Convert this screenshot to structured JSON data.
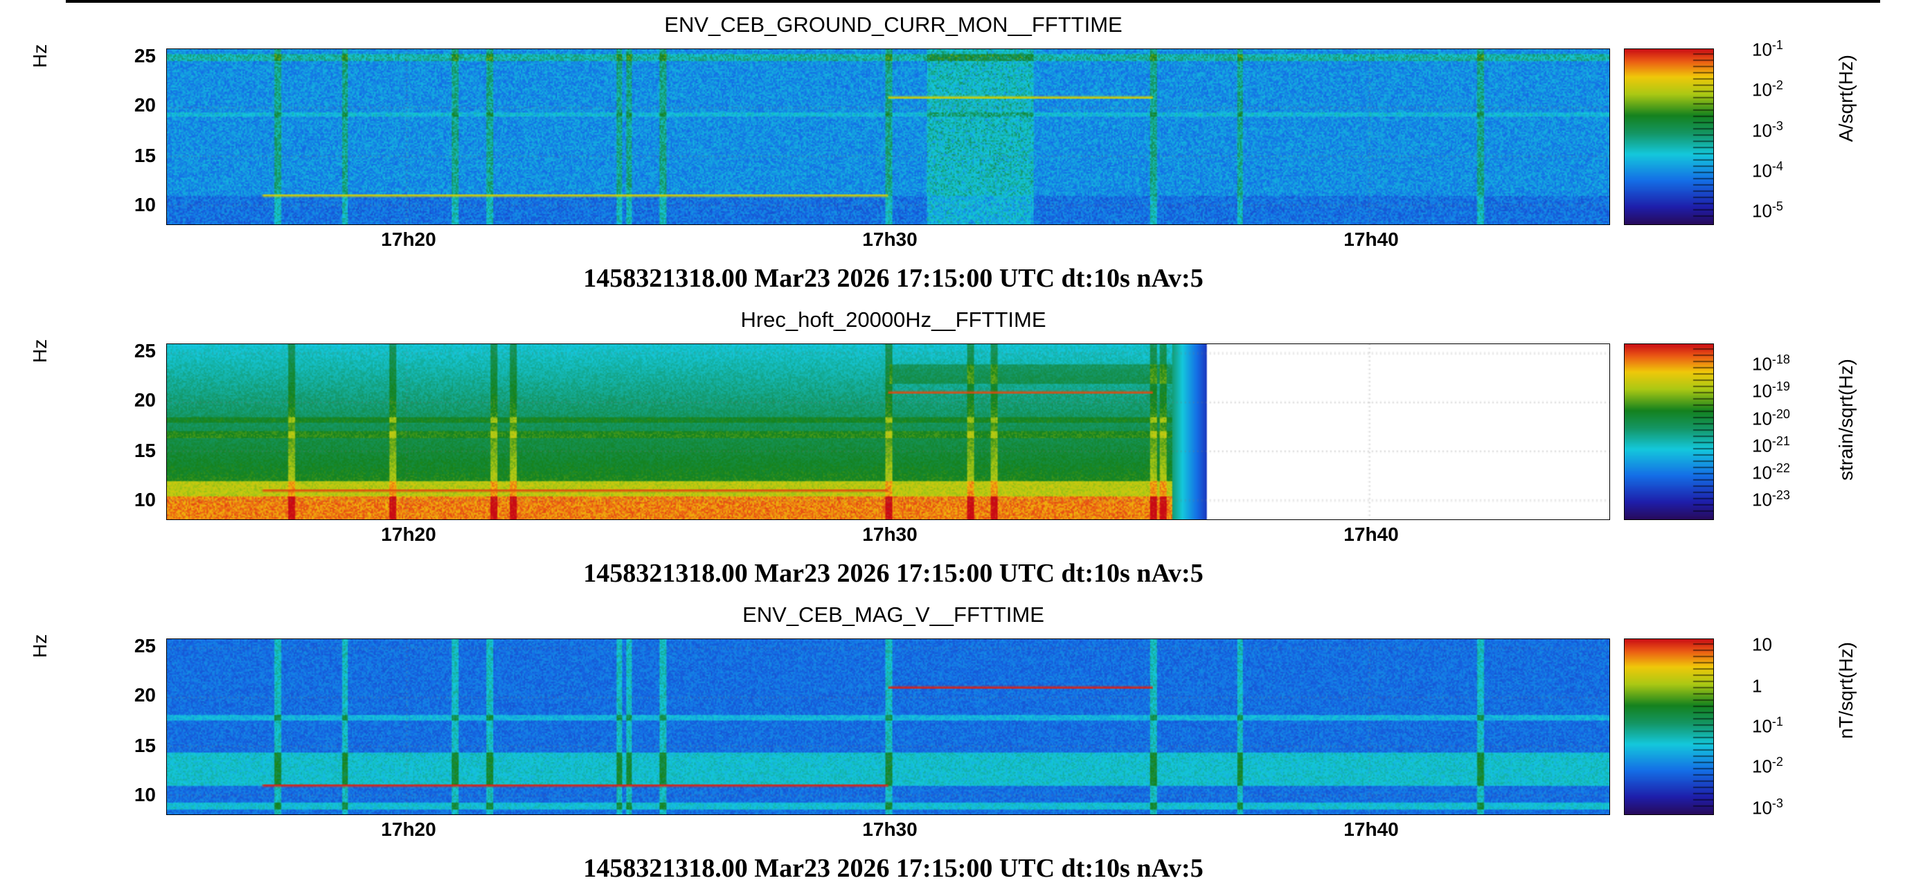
{
  "chart_data": [
    {
      "type": "heatmap",
      "title": "ENV_CEB_GROUND_CURR_MON__FFTTIME",
      "ylabel": "Hz",
      "yticks": [
        "25",
        "20",
        "15",
        "10"
      ],
      "ylim": [
        8,
        26
      ],
      "xticks": [
        "17h20",
        "17h30",
        "17h40"
      ],
      "colorbar_label": "A/sqrt(Hz)",
      "colorbar_ticks": [
        {
          "base": "10",
          "exp": "-1"
        },
        {
          "base": "10",
          "exp": "-2"
        },
        {
          "base": "10",
          "exp": "-3"
        },
        {
          "base": "10",
          "exp": "-4"
        },
        {
          "base": "10",
          "exp": "-5"
        }
      ],
      "caption": "1458321318.00 Mar23 2026 17:15:00 UTC dt:10s nAv:5",
      "colormap": "rainbow"
    },
    {
      "type": "heatmap",
      "title": "Hrec_hoft_20000Hz__FFTTIME",
      "ylabel": "Hz",
      "yticks": [
        "25",
        "20",
        "15",
        "10"
      ],
      "ylim": [
        8,
        26
      ],
      "xticks": [
        "17h20",
        "17h30",
        "17h40"
      ],
      "colorbar_label": "strain/sqrt(Hz)",
      "colorbar_ticks": [
        {
          "base": "10",
          "exp": "-18"
        },
        {
          "base": "10",
          "exp": "-19"
        },
        {
          "base": "10",
          "exp": "-20"
        },
        {
          "base": "10",
          "exp": "-21"
        },
        {
          "base": "10",
          "exp": "-22"
        },
        {
          "base": "10",
          "exp": "-23"
        }
      ],
      "caption": "1458321318.00 Mar23 2026 17:15:00 UTC dt:10s nAv:5",
      "colormap": "rainbow"
    },
    {
      "type": "heatmap",
      "title": "ENV_CEB_MAG_V__FFTTIME",
      "ylabel": "Hz",
      "yticks": [
        "25",
        "20",
        "15",
        "10"
      ],
      "ylim": [
        8,
        26
      ],
      "xticks": [
        "17h20",
        "17h30",
        "17h40"
      ],
      "colorbar_label": "nT/sqrt(Hz)",
      "colorbar_ticks": [
        {
          "base": "10",
          "exp": ""
        },
        {
          "base": "1",
          "exp": ""
        },
        {
          "base": "10",
          "exp": "-1"
        },
        {
          "base": "10",
          "exp": "-2"
        },
        {
          "base": "10",
          "exp": "-3"
        }
      ],
      "caption": "1458321318.00 Mar23 2026 17:15:00 UTC dt:10s nAv:5",
      "colormap": "rainbow"
    }
  ]
}
